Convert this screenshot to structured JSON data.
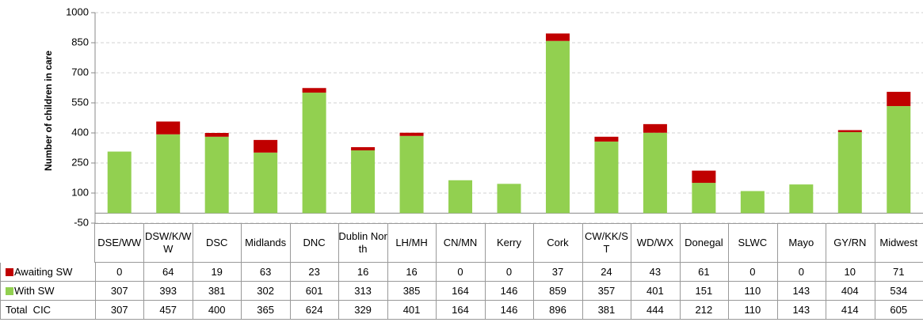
{
  "chart_data": {
    "type": "stacked_bar",
    "y_axis_label": "Number of children in care",
    "categories": [
      "DSE/WW",
      "DSW/K/WW",
      "DSC",
      "Midlands",
      "DNC",
      "Dublin North",
      "LH/MH",
      "CN/MN",
      "Kerry",
      "Cork",
      "CW/KK/ST",
      "WD/WX",
      "Donegal",
      "SLWC",
      "Mayo",
      "GY/RN",
      "Midwest"
    ],
    "series": [
      {
        "name": "Awaiting SW",
        "color": "#c00000",
        "values": [
          0,
          64,
          19,
          63,
          23,
          16,
          16,
          0,
          0,
          37,
          24,
          43,
          61,
          0,
          0,
          10,
          71
        ]
      },
      {
        "name": "With SW",
        "color": "#92d050",
        "values": [
          307,
          393,
          381,
          302,
          601,
          313,
          385,
          164,
          146,
          859,
          357,
          401,
          151,
          110,
          143,
          404,
          534
        ]
      }
    ],
    "total_label": "Total  CIC",
    "totals": [
      307,
      457,
      400,
      365,
      624,
      329,
      401,
      164,
      146,
      896,
      381,
      444,
      212,
      110,
      143,
      414,
      605
    ],
    "ylim": [
      -50,
      1000
    ],
    "yticks": [
      -50,
      100,
      250,
      400,
      550,
      700,
      850,
      1000
    ],
    "grid": true
  }
}
